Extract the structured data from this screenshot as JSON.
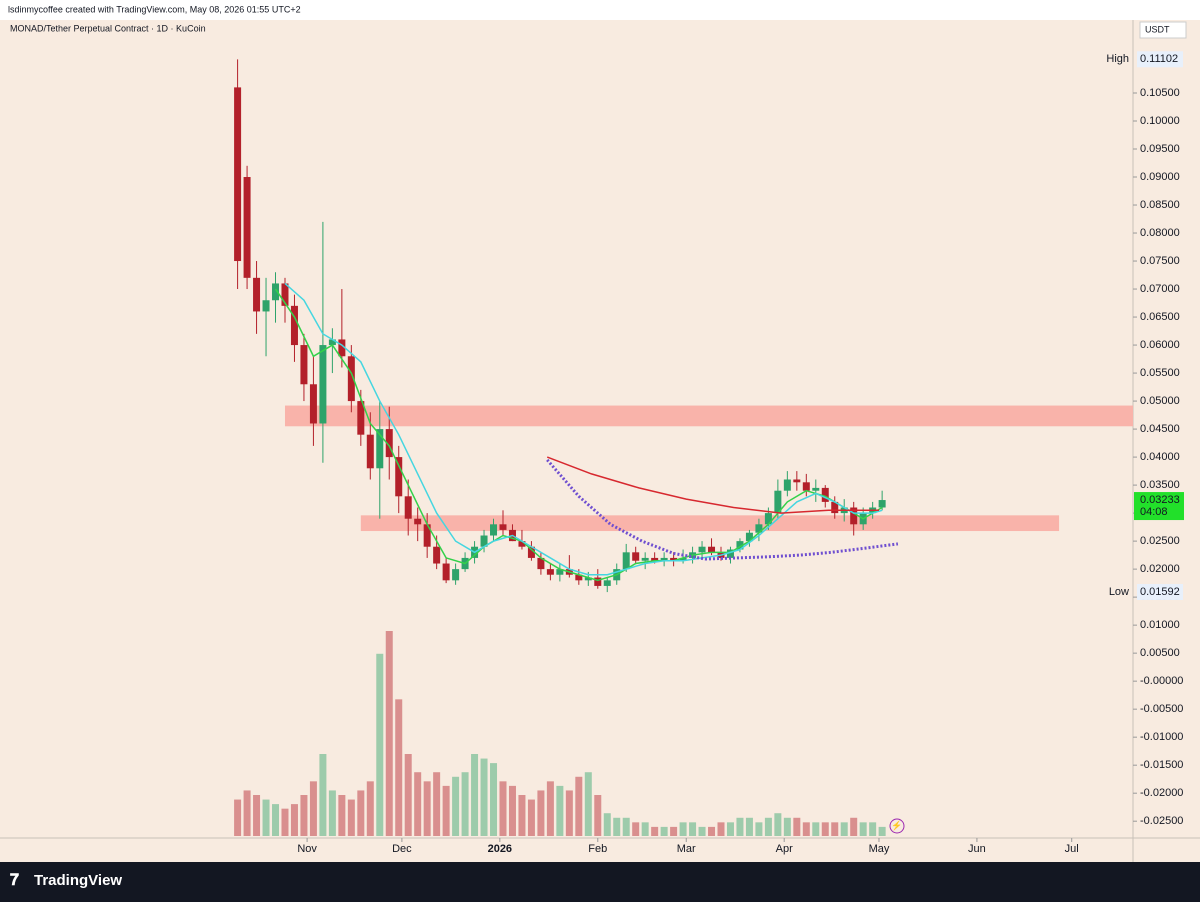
{
  "chart_data": {
    "type": "candlestick",
    "header": "lsdinmycoffee created with TradingView.com, May 08, 2026 01:55 UTC+2",
    "title": "MONAD/Tether Perpetual Contract · 1D · KuCoin",
    "currency": "USDT",
    "brand": "TradingView",
    "up_color": "#2ea36a",
    "down_color": "#b3202a",
    "xlim": [
      -97.2,
      261.4
    ],
    "xticks": [
      {
        "value": 0,
        "label": "Nov"
      },
      {
        "value": 30,
        "label": "Dec"
      },
      {
        "value": 61,
        "label": "2026"
      },
      {
        "value": 92,
        "label": "Feb"
      },
      {
        "value": 120,
        "label": "Mar"
      },
      {
        "value": 151,
        "label": "Apr"
      },
      {
        "value": 181,
        "label": "May"
      },
      {
        "value": 212,
        "label": "Jun"
      },
      {
        "value": 242,
        "label": "Jul"
      }
    ],
    "ylim": [
      -0.028,
      0.1216
    ],
    "yticks": [
      {
        "value": 0.105,
        "label": "0.10500"
      },
      {
        "value": 0.1,
        "label": "0.10000"
      },
      {
        "value": 0.095,
        "label": "0.09500"
      },
      {
        "value": 0.09,
        "label": "0.09000"
      },
      {
        "value": 0.085,
        "label": "0.08500"
      },
      {
        "value": 0.08,
        "label": "0.08000"
      },
      {
        "value": 0.075,
        "label": "0.07500"
      },
      {
        "value": 0.07,
        "label": "0.07000"
      },
      {
        "value": 0.065,
        "label": "0.06500"
      },
      {
        "value": 0.06,
        "label": "0.06000"
      },
      {
        "value": 0.055,
        "label": "0.05500"
      },
      {
        "value": 0.05,
        "label": "0.05000"
      },
      {
        "value": 0.045,
        "label": "0.04500"
      },
      {
        "value": 0.04,
        "label": "0.04000"
      },
      {
        "value": 0.035,
        "label": "0.03500"
      },
      {
        "value": 0.03,
        "label": "0.03000"
      },
      {
        "value": 0.025,
        "label": "0.02500"
      },
      {
        "value": 0.02,
        "label": "0.02000"
      },
      {
        "value": 0.015,
        "label": "0.01500"
      },
      {
        "value": 0.01,
        "label": "0.01000"
      },
      {
        "value": 0.005,
        "label": "0.00500"
      },
      {
        "value": 0,
        "label": "-0.00000"
      },
      {
        "value": -0.005,
        "label": "-0.00500"
      },
      {
        "value": -0.01,
        "label": "-0.01000"
      },
      {
        "value": -0.015,
        "label": "-0.01500"
      },
      {
        "value": -0.02,
        "label": "-0.02000"
      },
      {
        "value": -0.025,
        "label": "-0.02500"
      }
    ],
    "high": {
      "label": "High",
      "value": 0.11102
    },
    "low": {
      "label": "Low",
      "value": 0.01592
    },
    "last": {
      "value": 0.03233,
      "countdown": "04:08",
      "color": "#22e02a"
    },
    "zones": [
      {
        "x": [
          -7,
          261.4
        ],
        "y": [
          0.0455,
          0.0492
        ],
        "color": "#f9b3aa"
      },
      {
        "x": [
          17,
          238
        ],
        "y": [
          0.0268,
          0.0296
        ],
        "color": "#f9b3aa"
      }
    ],
    "candles": [
      {
        "x": -22,
        "open": 0.106,
        "high": 0.111,
        "low": 0.07,
        "close": 0.075,
        "volume": 8
      },
      {
        "x": -19,
        "open": 0.09,
        "high": 0.092,
        "low": 0.07,
        "close": 0.072,
        "volume": 10
      },
      {
        "x": -16,
        "open": 0.072,
        "high": 0.075,
        "low": 0.062,
        "close": 0.066,
        "volume": 9
      },
      {
        "x": -13,
        "open": 0.066,
        "high": 0.072,
        "low": 0.058,
        "close": 0.068,
        "volume": 8
      },
      {
        "x": -10,
        "open": 0.068,
        "high": 0.073,
        "low": 0.064,
        "close": 0.071,
        "volume": 7
      },
      {
        "x": -7,
        "open": 0.071,
        "high": 0.072,
        "low": 0.064,
        "close": 0.067,
        "volume": 6
      },
      {
        "x": -4,
        "open": 0.067,
        "high": 0.069,
        "low": 0.057,
        "close": 0.06,
        "volume": 7
      },
      {
        "x": -1,
        "open": 0.06,
        "high": 0.062,
        "low": 0.05,
        "close": 0.053,
        "volume": 9
      },
      {
        "x": 2,
        "open": 0.053,
        "high": 0.058,
        "low": 0.042,
        "close": 0.046,
        "volume": 12
      },
      {
        "x": 5,
        "open": 0.046,
        "high": 0.082,
        "low": 0.039,
        "close": 0.06,
        "volume": 18
      },
      {
        "x": 8,
        "open": 0.06,
        "high": 0.063,
        "low": 0.055,
        "close": 0.061,
        "volume": 10
      },
      {
        "x": 11,
        "open": 0.061,
        "high": 0.07,
        "low": 0.056,
        "close": 0.058,
        "volume": 9
      },
      {
        "x": 14,
        "open": 0.058,
        "high": 0.06,
        "low": 0.048,
        "close": 0.05,
        "volume": 8
      },
      {
        "x": 17,
        "open": 0.05,
        "high": 0.052,
        "low": 0.042,
        "close": 0.044,
        "volume": 10
      },
      {
        "x": 20,
        "open": 0.044,
        "high": 0.048,
        "low": 0.036,
        "close": 0.038,
        "volume": 12
      },
      {
        "x": 23,
        "open": 0.038,
        "high": 0.05,
        "low": 0.029,
        "close": 0.045,
        "volume": 40
      },
      {
        "x": 26,
        "open": 0.045,
        "high": 0.049,
        "low": 0.036,
        "close": 0.04,
        "volume": 45
      },
      {
        "x": 29,
        "open": 0.04,
        "high": 0.042,
        "low": 0.03,
        "close": 0.033,
        "volume": 30
      },
      {
        "x": 32,
        "open": 0.033,
        "high": 0.036,
        "low": 0.026,
        "close": 0.029,
        "volume": 18
      },
      {
        "x": 35,
        "open": 0.029,
        "high": 0.031,
        "low": 0.025,
        "close": 0.028,
        "volume": 14
      },
      {
        "x": 38,
        "open": 0.028,
        "high": 0.03,
        "low": 0.022,
        "close": 0.024,
        "volume": 12
      },
      {
        "x": 41,
        "open": 0.024,
        "high": 0.026,
        "low": 0.02,
        "close": 0.021,
        "volume": 14
      },
      {
        "x": 44,
        "open": 0.021,
        "high": 0.022,
        "low": 0.0175,
        "close": 0.018,
        "volume": 11
      },
      {
        "x": 47,
        "open": 0.018,
        "high": 0.021,
        "low": 0.0172,
        "close": 0.02,
        "volume": 13
      },
      {
        "x": 50,
        "open": 0.02,
        "high": 0.023,
        "low": 0.0195,
        "close": 0.022,
        "volume": 14
      },
      {
        "x": 53,
        "open": 0.022,
        "high": 0.025,
        "low": 0.021,
        "close": 0.024,
        "volume": 18
      },
      {
        "x": 56,
        "open": 0.024,
        "high": 0.027,
        "low": 0.023,
        "close": 0.026,
        "volume": 17
      },
      {
        "x": 59,
        "open": 0.026,
        "high": 0.029,
        "low": 0.025,
        "close": 0.028,
        "volume": 16
      },
      {
        "x": 62,
        "open": 0.028,
        "high": 0.0305,
        "low": 0.026,
        "close": 0.027,
        "volume": 12
      },
      {
        "x": 65,
        "open": 0.027,
        "high": 0.028,
        "low": 0.025,
        "close": 0.025,
        "volume": 11
      },
      {
        "x": 68,
        "open": 0.025,
        "high": 0.027,
        "low": 0.0235,
        "close": 0.024,
        "volume": 9
      },
      {
        "x": 71,
        "open": 0.024,
        "high": 0.025,
        "low": 0.0215,
        "close": 0.022,
        "volume": 8
      },
      {
        "x": 74,
        "open": 0.022,
        "high": 0.023,
        "low": 0.019,
        "close": 0.02,
        "volume": 10
      },
      {
        "x": 77,
        "open": 0.02,
        "high": 0.021,
        "low": 0.018,
        "close": 0.019,
        "volume": 12
      },
      {
        "x": 80,
        "open": 0.019,
        "high": 0.021,
        "low": 0.0178,
        "close": 0.02,
        "volume": 11
      },
      {
        "x": 83,
        "open": 0.02,
        "high": 0.0225,
        "low": 0.0185,
        "close": 0.019,
        "volume": 10
      },
      {
        "x": 86,
        "open": 0.019,
        "high": 0.02,
        "low": 0.0172,
        "close": 0.018,
        "volume": 13
      },
      {
        "x": 89,
        "open": 0.018,
        "high": 0.0195,
        "low": 0.017,
        "close": 0.0185,
        "volume": 14
      },
      {
        "x": 92,
        "open": 0.0185,
        "high": 0.02,
        "low": 0.0165,
        "close": 0.017,
        "volume": 9
      },
      {
        "x": 95,
        "open": 0.017,
        "high": 0.0185,
        "low": 0.0159,
        "close": 0.018,
        "volume": 5
      },
      {
        "x": 98,
        "open": 0.018,
        "high": 0.021,
        "low": 0.0172,
        "close": 0.02,
        "volume": 4
      },
      {
        "x": 101,
        "open": 0.02,
        "high": 0.0245,
        "low": 0.0195,
        "close": 0.023,
        "volume": 4
      },
      {
        "x": 104,
        "open": 0.023,
        "high": 0.024,
        "low": 0.021,
        "close": 0.0215,
        "volume": 3
      },
      {
        "x": 107,
        "open": 0.0215,
        "high": 0.023,
        "low": 0.02,
        "close": 0.022,
        "volume": 3
      },
      {
        "x": 110,
        "open": 0.022,
        "high": 0.023,
        "low": 0.021,
        "close": 0.0215,
        "volume": 2
      },
      {
        "x": 113,
        "open": 0.0215,
        "high": 0.023,
        "low": 0.0205,
        "close": 0.022,
        "volume": 2
      },
      {
        "x": 116,
        "open": 0.022,
        "high": 0.023,
        "low": 0.0205,
        "close": 0.0215,
        "volume": 2
      },
      {
        "x": 119,
        "open": 0.0215,
        "high": 0.0235,
        "low": 0.021,
        "close": 0.022,
        "volume": 3
      },
      {
        "x": 122,
        "open": 0.022,
        "high": 0.024,
        "low": 0.021,
        "close": 0.023,
        "volume": 3
      },
      {
        "x": 125,
        "open": 0.023,
        "high": 0.025,
        "low": 0.022,
        "close": 0.024,
        "volume": 2
      },
      {
        "x": 128,
        "open": 0.024,
        "high": 0.0255,
        "low": 0.0225,
        "close": 0.023,
        "volume": 2
      },
      {
        "x": 131,
        "open": 0.023,
        "high": 0.024,
        "low": 0.0215,
        "close": 0.022,
        "volume": 3
      },
      {
        "x": 134,
        "open": 0.022,
        "high": 0.024,
        "low": 0.021,
        "close": 0.0235,
        "volume": 3
      },
      {
        "x": 137,
        "open": 0.0235,
        "high": 0.0255,
        "low": 0.023,
        "close": 0.025,
        "volume": 4
      },
      {
        "x": 140,
        "open": 0.025,
        "high": 0.027,
        "low": 0.024,
        "close": 0.0265,
        "volume": 4
      },
      {
        "x": 143,
        "open": 0.0265,
        "high": 0.029,
        "low": 0.025,
        "close": 0.028,
        "volume": 3
      },
      {
        "x": 146,
        "open": 0.028,
        "high": 0.031,
        "low": 0.027,
        "close": 0.03,
        "volume": 4
      },
      {
        "x": 149,
        "open": 0.03,
        "high": 0.036,
        "low": 0.029,
        "close": 0.034,
        "volume": 5
      },
      {
        "x": 152,
        "open": 0.034,
        "high": 0.0375,
        "low": 0.033,
        "close": 0.036,
        "volume": 4
      },
      {
        "x": 155,
        "open": 0.036,
        "high": 0.0375,
        "low": 0.034,
        "close": 0.0355,
        "volume": 4
      },
      {
        "x": 158,
        "open": 0.0355,
        "high": 0.037,
        "low": 0.033,
        "close": 0.034,
        "volume": 3
      },
      {
        "x": 161,
        "open": 0.034,
        "high": 0.036,
        "low": 0.032,
        "close": 0.0345,
        "volume": 3
      },
      {
        "x": 164,
        "open": 0.0345,
        "high": 0.035,
        "low": 0.031,
        "close": 0.032,
        "volume": 3
      },
      {
        "x": 167,
        "open": 0.032,
        "high": 0.033,
        "low": 0.029,
        "close": 0.03,
        "volume": 3
      },
      {
        "x": 170,
        "open": 0.03,
        "high": 0.0325,
        "low": 0.0285,
        "close": 0.031,
        "volume": 3
      },
      {
        "x": 173,
        "open": 0.031,
        "high": 0.032,
        "low": 0.026,
        "close": 0.028,
        "volume": 4
      },
      {
        "x": 176,
        "open": 0.028,
        "high": 0.031,
        "low": 0.027,
        "close": 0.03,
        "volume": 3
      },
      {
        "x": 179,
        "open": 0.03,
        "high": 0.032,
        "low": 0.029,
        "close": 0.031,
        "volume": 3
      },
      {
        "x": 182,
        "open": 0.031,
        "high": 0.034,
        "low": 0.0305,
        "close": 0.03233,
        "volume": 2
      }
    ],
    "lines": [
      {
        "color": "#33d14a",
        "dotted": false,
        "x": [
          -10,
          -4,
          2,
          8,
          14,
          20,
          26,
          32,
          38,
          44,
          50,
          56,
          62,
          68,
          74,
          80,
          86,
          92,
          98,
          104,
          110,
          116,
          122,
          128,
          134,
          140,
          146,
          152,
          158,
          164,
          170,
          176,
          182
        ],
        "values": [
          0.07,
          0.065,
          0.058,
          0.06,
          0.055,
          0.046,
          0.042,
          0.035,
          0.028,
          0.022,
          0.021,
          0.024,
          0.026,
          0.025,
          0.022,
          0.02,
          0.019,
          0.018,
          0.019,
          0.021,
          0.0215,
          0.0215,
          0.0225,
          0.023,
          0.023,
          0.025,
          0.028,
          0.032,
          0.034,
          0.033,
          0.031,
          0.029,
          0.031
        ]
      },
      {
        "color": "#45d6e0",
        "dotted": false,
        "x": [
          -7,
          -1,
          5,
          11,
          17,
          23,
          29,
          35,
          41,
          47,
          53,
          59,
          65,
          71,
          77,
          83,
          89,
          95,
          101,
          107,
          113,
          119,
          125,
          131,
          137,
          143,
          149,
          155,
          161,
          167,
          173,
          179,
          182
        ],
        "values": [
          0.071,
          0.068,
          0.062,
          0.06,
          0.057,
          0.05,
          0.044,
          0.037,
          0.03,
          0.025,
          0.023,
          0.025,
          0.026,
          0.024,
          0.022,
          0.02,
          0.019,
          0.019,
          0.02,
          0.021,
          0.0215,
          0.0215,
          0.022,
          0.0225,
          0.0235,
          0.026,
          0.029,
          0.032,
          0.0335,
          0.032,
          0.03,
          0.03,
          0.0305
        ]
      },
      {
        "color": "#d7282f",
        "dotted": false,
        "x": [
          76,
          90,
          105,
          120,
          135,
          150,
          165,
          181
        ],
        "values": [
          0.04,
          0.037,
          0.0345,
          0.0325,
          0.031,
          0.03,
          0.0305,
          0.0305
        ]
      },
      {
        "color": "#6f4fd0",
        "dotted": true,
        "x": [
          76,
          86,
          96,
          106,
          116,
          126,
          136,
          146,
          156,
          166,
          176,
          187
        ],
        "values": [
          0.0395,
          0.033,
          0.028,
          0.025,
          0.0228,
          0.0218,
          0.022,
          0.0222,
          0.0225,
          0.023,
          0.0237,
          0.0245
        ]
      }
    ]
  }
}
